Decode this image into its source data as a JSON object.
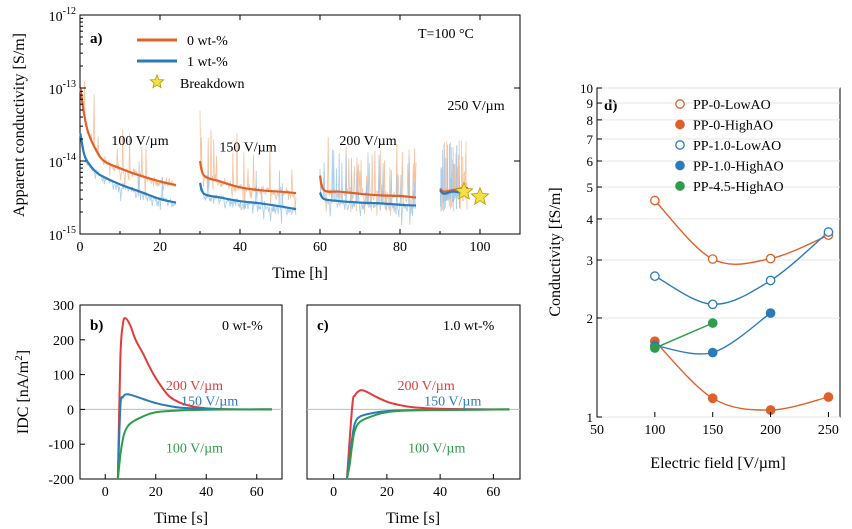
{
  "chart_data": [
    {
      "id": "a",
      "type": "line",
      "panel_label": "a)",
      "xlabel": "Time [h]",
      "ylabel": "Apparent conductivity [S/m]",
      "xlim": [
        0,
        110
      ],
      "ylim_exp": [
        -15,
        -12
      ],
      "yscale": "log",
      "xticks": [
        "0",
        "20",
        "40",
        "60",
        "80",
        "100"
      ],
      "xtick_values": [
        0,
        20,
        40,
        60,
        80,
        100
      ],
      "ytick_base": "10",
      "ytick_exponents": [
        "-15",
        "-14",
        "-13",
        "-12"
      ],
      "ytick_values": [
        -15,
        -14,
        -13,
        -12
      ],
      "annotation_temperature": "T=100 °C",
      "legend": [
        {
          "name": "0 wt-%",
          "color": "#e0602a",
          "kind": "line"
        },
        {
          "name": "1 wt-%",
          "color": "#2b7bba",
          "kind": "line"
        },
        {
          "name": "Breakdown",
          "color": "#f5e04a",
          "kind": "star"
        }
      ],
      "step_labels": [
        {
          "text": "100 V/µm",
          "x": 15,
          "y": -13.78
        },
        {
          "text": "150 V/µm",
          "x": 42,
          "y": -13.87
        },
        {
          "text": "200 V/µm",
          "x": 72,
          "y": -13.78
        },
        {
          "text": "250 V/µm",
          "x": 99,
          "y": -13.3
        }
      ],
      "series": [
        {
          "name": "0 wt-%",
          "color": "#e0602a",
          "segments": [
            [
              [
                0.1,
                -13.0
              ],
              [
                1,
                -13.35
              ],
              [
                2,
                -13.6
              ],
              [
                4,
                -13.85
              ],
              [
                6,
                -14.0
              ],
              [
                10,
                -14.1
              ],
              [
                15,
                -14.2
              ],
              [
                20,
                -14.28
              ],
              [
                24,
                -14.33
              ]
            ],
            [
              [
                30,
                -14.0
              ],
              [
                31,
                -14.2
              ],
              [
                35,
                -14.28
              ],
              [
                40,
                -14.36
              ],
              [
                45,
                -14.4
              ],
              [
                50,
                -14.42
              ],
              [
                54,
                -14.44
              ]
            ],
            [
              [
                60,
                -14.2
              ],
              [
                61,
                -14.4
              ],
              [
                65,
                -14.42
              ],
              [
                70,
                -14.45
              ],
              [
                75,
                -14.47
              ],
              [
                80,
                -14.48
              ],
              [
                84,
                -14.5
              ]
            ],
            [
              [
                90,
                -14.38
              ],
              [
                91,
                -14.42
              ],
              [
                93,
                -14.4
              ],
              [
                95,
                -14.38
              ],
              [
                97,
                -14.37
              ]
            ]
          ]
        },
        {
          "name": "1 wt-%",
          "color": "#2b7bba",
          "segments": [
            [
              [
                0.1,
                -13.62
              ],
              [
                1,
                -13.9
              ],
              [
                2,
                -14.02
              ],
              [
                4,
                -14.15
              ],
              [
                6,
                -14.22
              ],
              [
                10,
                -14.32
              ],
              [
                15,
                -14.42
              ],
              [
                20,
                -14.52
              ],
              [
                24,
                -14.57
              ]
            ],
            [
              [
                30,
                -14.3
              ],
              [
                31,
                -14.45
              ],
              [
                35,
                -14.5
              ],
              [
                40,
                -14.55
              ],
              [
                45,
                -14.58
              ],
              [
                50,
                -14.62
              ],
              [
                54,
                -14.66
              ]
            ],
            [
              [
                60,
                -14.43
              ],
              [
                61,
                -14.52
              ],
              [
                65,
                -14.55
              ],
              [
                70,
                -14.57
              ],
              [
                75,
                -14.58
              ],
              [
                80,
                -14.6
              ],
              [
                84,
                -14.61
              ]
            ],
            [
              [
                90,
                -14.4
              ],
              [
                91,
                -14.45
              ],
              [
                93,
                -14.42
              ],
              [
                95,
                -14.43
              ]
            ]
          ]
        }
      ],
      "breakdown_points": [
        {
          "x": 96,
          "y": -14.42
        },
        {
          "x": 100,
          "y": -14.49
        }
      ]
    },
    {
      "id": "b",
      "type": "line",
      "panel_label": "b)",
      "corner_text": "0 wt-%",
      "xlabel": "Time [s]",
      "ylabel": "IDC [nA/m",
      "ylabel_sup": "2",
      "ylabel_end": "]",
      "xlim": [
        -10,
        70
      ],
      "ylim": [
        -200,
        300
      ],
      "xticks": [
        "0",
        "20",
        "40",
        "60"
      ],
      "xtick_values": [
        0,
        20,
        40,
        60
      ],
      "yticks": [
        "-200",
        "-100",
        "0",
        "100",
        "200",
        "300"
      ],
      "ytick_values": [
        -200,
        -100,
        0,
        100,
        200,
        300
      ],
      "series": [
        {
          "name": "200 V/µm",
          "color": "#e23b3b",
          "label_x": 24,
          "label_y": 70,
          "points": [
            [
              5,
              -200
            ],
            [
              6,
              150
            ],
            [
              7,
              245
            ],
            [
              8,
              262
            ],
            [
              10,
              240
            ],
            [
              12,
              200
            ],
            [
              15,
              160
            ],
            [
              17,
              130
            ],
            [
              20,
              90
            ],
            [
              25,
              40
            ],
            [
              30,
              18
            ],
            [
              35,
              8
            ],
            [
              40,
              3
            ],
            [
              50,
              0
            ],
            [
              66,
              0
            ]
          ]
        },
        {
          "name": "150 V/µm",
          "color": "#2b7bba",
          "label_x": 30,
          "label_y": 25,
          "points": [
            [
              5,
              -200
            ],
            [
              6,
              10
            ],
            [
              7,
              35
            ],
            [
              8,
              43
            ],
            [
              10,
              42
            ],
            [
              15,
              30
            ],
            [
              20,
              18
            ],
            [
              25,
              10
            ],
            [
              30,
              5
            ],
            [
              40,
              2
            ],
            [
              50,
              0
            ],
            [
              66,
              0
            ]
          ]
        },
        {
          "name": "100 V/µm",
          "color": "#2e9c4a",
          "label_x": 24,
          "label_y": -110,
          "points": [
            [
              5,
              -200
            ],
            [
              6,
              -130
            ],
            [
              7,
              -85
            ],
            [
              8,
              -60
            ],
            [
              10,
              -40
            ],
            [
              15,
              -20
            ],
            [
              20,
              -8
            ],
            [
              30,
              -3
            ],
            [
              40,
              -1
            ],
            [
              50,
              0
            ],
            [
              66,
              0
            ]
          ]
        }
      ]
    },
    {
      "id": "c",
      "type": "line",
      "panel_label": "c)",
      "corner_text": "1.0 wt-%",
      "xlabel": "Time [s]",
      "xlim": [
        -10,
        70
      ],
      "ylim": [
        -200,
        300
      ],
      "xticks": [
        "0",
        "20",
        "40",
        "60"
      ],
      "xtick_values": [
        0,
        20,
        40,
        60
      ],
      "series": [
        {
          "name": "200 V/µm",
          "color": "#e23b3b",
          "label_x": 24,
          "label_y": 70,
          "points": [
            [
              5,
              -200
            ],
            [
              7,
              10
            ],
            [
              8,
              40
            ],
            [
              10,
              55
            ],
            [
              12,
              52
            ],
            [
              15,
              40
            ],
            [
              20,
              22
            ],
            [
              25,
              12
            ],
            [
              30,
              6
            ],
            [
              40,
              2
            ],
            [
              66,
              0
            ]
          ]
        },
        {
          "name": "150 V/µm",
          "color": "#2b7bba",
          "label_x": 34,
          "label_y": 25,
          "points": [
            [
              5,
              -200
            ],
            [
              6,
              -140
            ],
            [
              7,
              -80
            ],
            [
              8,
              -40
            ],
            [
              10,
              -20
            ],
            [
              15,
              -10
            ],
            [
              20,
              -5
            ],
            [
              30,
              -2
            ],
            [
              66,
              0
            ]
          ]
        },
        {
          "name": "100 V/µm",
          "color": "#2e9c4a",
          "label_x": 28,
          "label_y": -110,
          "points": [
            [
              5,
              -200
            ],
            [
              6,
              -160
            ],
            [
              7,
              -100
            ],
            [
              8,
              -60
            ],
            [
              10,
              -35
            ],
            [
              15,
              -18
            ],
            [
              20,
              -8
            ],
            [
              30,
              -3
            ],
            [
              66,
              0
            ]
          ]
        }
      ]
    },
    {
      "id": "d",
      "type": "scatter",
      "panel_label": "d)",
      "xlabel": "Electric field [V/µm]",
      "ylabel": "Conductivity [fS/m]",
      "xlim": [
        50,
        260
      ],
      "ylim": [
        1,
        10
      ],
      "yscale": "log",
      "xticks": [
        "50",
        "100",
        "150",
        "200",
        "250"
      ],
      "xtick_values": [
        50,
        100,
        150,
        200,
        250
      ],
      "yticks": [
        "1",
        "2",
        "3",
        "4",
        "5",
        "6",
        "7",
        "8",
        "9",
        "10"
      ],
      "ytick_values": [
        1,
        2,
        3,
        4,
        5,
        6,
        7,
        8,
        9,
        10
      ],
      "series": [
        {
          "name": "PP-0-LowAO",
          "color": "#e0602a",
          "filled": false,
          "x": [
            100,
            150,
            200,
            250
          ],
          "y": [
            4.55,
            3.02,
            3.03,
            3.57
          ]
        },
        {
          "name": "PP-0-HighAO",
          "color": "#e0602a",
          "filled": true,
          "x": [
            100,
            150,
            200,
            250
          ],
          "y": [
            1.7,
            1.14,
            1.05,
            1.15
          ]
        },
        {
          "name": "PP-1.0-LowAO",
          "color": "#2b7bba",
          "filled": false,
          "x": [
            100,
            150,
            200,
            250
          ],
          "y": [
            2.68,
            2.2,
            2.6,
            3.65
          ]
        },
        {
          "name": "PP-1.0-HighAO",
          "color": "#2b7bba",
          "filled": true,
          "x": [
            100,
            150,
            200
          ],
          "y": [
            1.65,
            1.57,
            2.07
          ]
        },
        {
          "name": "PP-4.5-HighAO",
          "color": "#2e9c4a",
          "filled": true,
          "x": [
            100,
            150
          ],
          "y": [
            1.62,
            1.93
          ]
        }
      ]
    }
  ]
}
